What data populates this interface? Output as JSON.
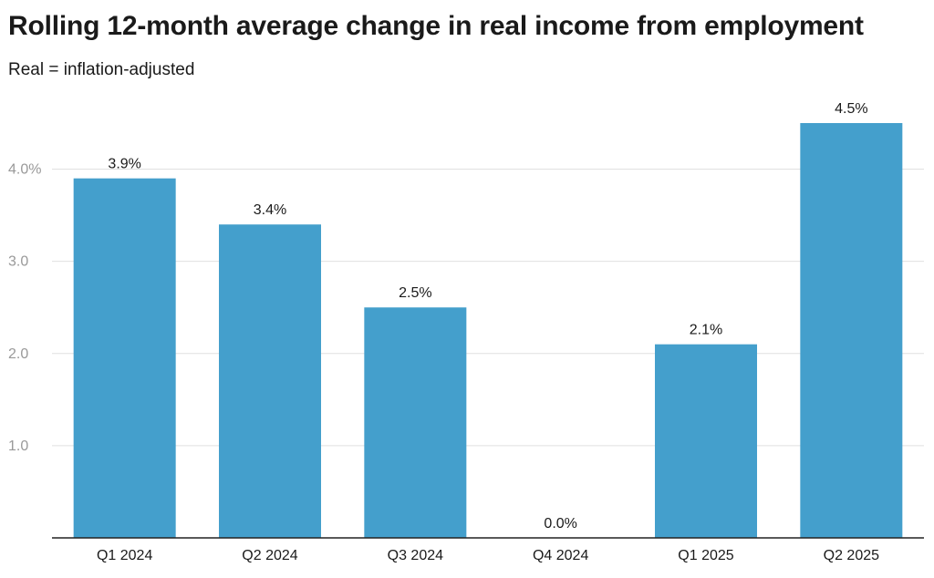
{
  "title": "Rolling 12-month average change in real income from employment",
  "subtitle": "Real = inflation-adjusted",
  "colors": {
    "bar": "#449fcc",
    "grid": "#e0e0e0",
    "axis": "#222222",
    "tick": "#999999"
  },
  "chart_data": {
    "type": "bar",
    "title": "Rolling 12-month average change in real income from employment",
    "subtitle": "Real = inflation-adjusted",
    "categories": [
      "Q1 2024",
      "Q2 2024",
      "Q3 2024",
      "Q4 2024",
      "Q1 2025",
      "Q2 2025"
    ],
    "values": [
      3.9,
      3.4,
      2.5,
      0.0,
      2.1,
      4.5
    ],
    "data_labels": [
      "3.9%",
      "3.4%",
      "2.5%",
      "0.0%",
      "2.1%",
      "4.5%"
    ],
    "yticks": [
      {
        "value": 1,
        "label": "1.0"
      },
      {
        "value": 2,
        "label": "2.0"
      },
      {
        "value": 3,
        "label": "3.0"
      },
      {
        "value": 4,
        "label": "4.0%"
      }
    ],
    "ylim": [
      0,
      4.5
    ],
    "grid": true,
    "legend": "none"
  }
}
